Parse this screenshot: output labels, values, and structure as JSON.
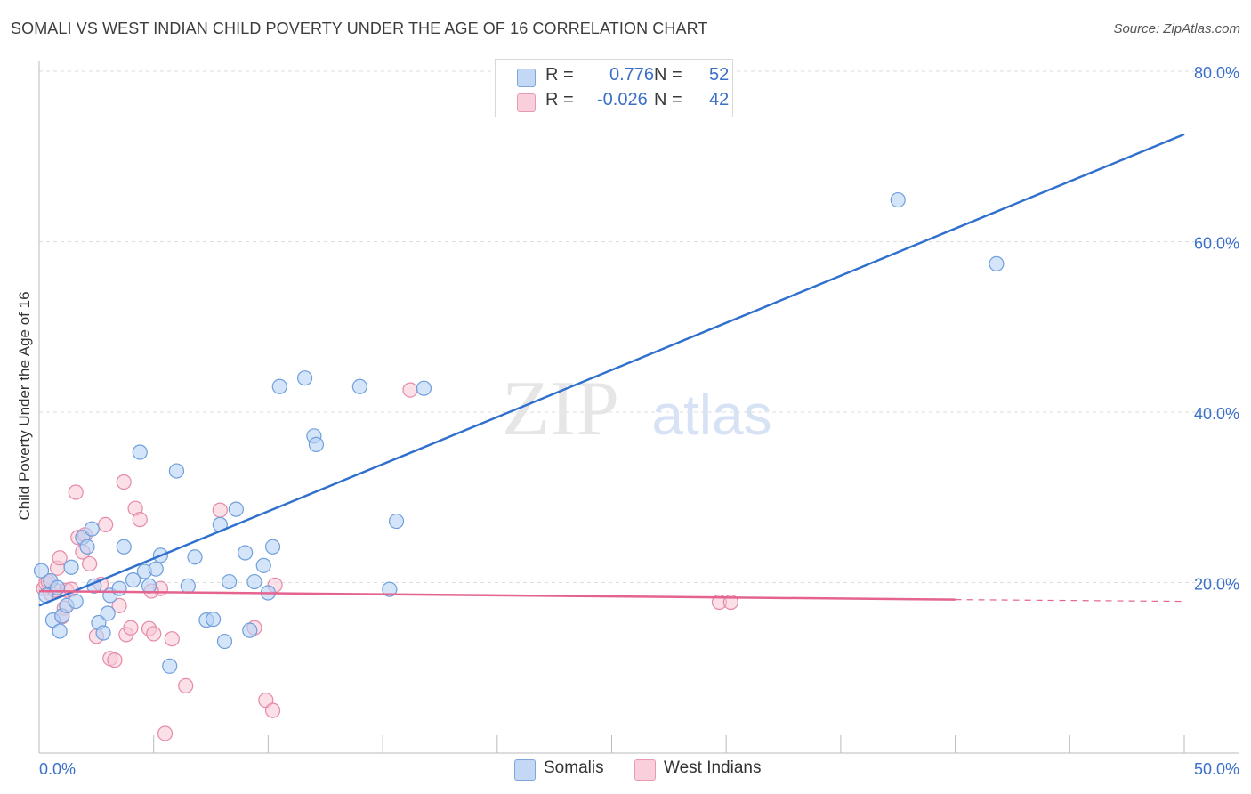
{
  "header": {
    "title": "SOMALI VS WEST INDIAN CHILD POVERTY UNDER THE AGE OF 16 CORRELATION CHART",
    "source": "Source: ZipAtlas.com"
  },
  "watermark": {
    "part1": "ZIP",
    "part2": "atlas"
  },
  "legend": {
    "somali": {
      "r_label": "R = ",
      "r_value": "0.776",
      "n_label": "N = ",
      "n_value": "52"
    },
    "westindian": {
      "r_label": "R = ",
      "r_value": "-0.026",
      "n_label": "N = ",
      "n_value": "42"
    }
  },
  "colors": {
    "somali_fill": "#b8d2f5",
    "somali_stroke": "#6f9fdc",
    "somali_line": "#2f6fce",
    "westindian_fill": "#f8c7d6",
    "westindian_stroke": "#e58aa7",
    "westindian_line": "#e4648f",
    "axis_label": "#3b6fc9",
    "grid": "#dddddd"
  },
  "chart_data": {
    "type": "scatter",
    "title": "SOMALI VS WEST INDIAN CHILD POVERTY UNDER THE AGE OF 16 CORRELATION CHART",
    "xlabel": "",
    "ylabel": "Child Poverty Under the Age of 16",
    "xlim": [
      0,
      50
    ],
    "ylim": [
      0,
      80
    ],
    "x_tick_labels": [
      "0.0%",
      "50.0%"
    ],
    "y_ticks": [
      20,
      40,
      60,
      80
    ],
    "y_tick_labels": [
      "20.0%",
      "40.0%",
      "60.0%",
      "80.0%"
    ],
    "legend_position": "bottom-center",
    "series": [
      {
        "name": "Somalis",
        "r": 0.776,
        "n": 52,
        "trend": {
          "x": [
            0,
            50
          ],
          "y": [
            17.3,
            72.6
          ]
        },
        "points": [
          [
            0.1,
            21.4
          ],
          [
            0.3,
            18.5
          ],
          [
            0.5,
            20.2
          ],
          [
            0.6,
            15.6
          ],
          [
            0.8,
            19.4
          ],
          [
            0.9,
            14.3
          ],
          [
            1.0,
            16.1
          ],
          [
            1.2,
            17.3
          ],
          [
            1.4,
            21.8
          ],
          [
            1.6,
            17.8
          ],
          [
            1.9,
            25.3
          ],
          [
            2.1,
            24.2
          ],
          [
            2.3,
            26.3
          ],
          [
            2.4,
            19.6
          ],
          [
            2.6,
            15.3
          ],
          [
            2.8,
            14.1
          ],
          [
            3.0,
            16.4
          ],
          [
            3.1,
            18.5
          ],
          [
            3.5,
            19.3
          ],
          [
            3.7,
            24.2
          ],
          [
            4.1,
            20.3
          ],
          [
            4.4,
            35.3
          ],
          [
            4.6,
            21.3
          ],
          [
            4.8,
            19.6
          ],
          [
            5.1,
            21.6
          ],
          [
            5.3,
            23.2
          ],
          [
            5.7,
            10.2
          ],
          [
            6.0,
            33.1
          ],
          [
            6.5,
            19.6
          ],
          [
            6.8,
            23.0
          ],
          [
            7.3,
            15.6
          ],
          [
            7.6,
            15.7
          ],
          [
            7.9,
            26.8
          ],
          [
            8.1,
            13.1
          ],
          [
            8.3,
            20.1
          ],
          [
            8.6,
            28.6
          ],
          [
            9.0,
            23.5
          ],
          [
            9.2,
            14.4
          ],
          [
            9.4,
            20.1
          ],
          [
            9.8,
            22.0
          ],
          [
            10.0,
            18.8
          ],
          [
            10.2,
            24.2
          ],
          [
            11.6,
            44.0
          ],
          [
            12.0,
            37.2
          ],
          [
            12.1,
            36.2
          ],
          [
            14.0,
            43.0
          ],
          [
            15.3,
            19.2
          ],
          [
            15.6,
            27.2
          ],
          [
            16.8,
            42.8
          ],
          [
            37.5,
            64.9
          ],
          [
            41.8,
            57.4
          ],
          [
            10.5,
            43.0
          ]
        ]
      },
      {
        "name": "West Indians",
        "r": -0.026,
        "n": 42,
        "trend": {
          "x": [
            0,
            40
          ],
          "y": [
            19.0,
            18.0
          ]
        },
        "dashed_extension": {
          "x": [
            40,
            50
          ],
          "y": [
            18.0,
            17.8
          ]
        },
        "points": [
          [
            0.2,
            19.3
          ],
          [
            0.3,
            19.9
          ],
          [
            0.4,
            20.1
          ],
          [
            0.5,
            18.7
          ],
          [
            0.7,
            19.1
          ],
          [
            0.8,
            21.7
          ],
          [
            0.9,
            22.9
          ],
          [
            1.1,
            17.0
          ],
          [
            1.2,
            19.1
          ],
          [
            1.4,
            19.2
          ],
          [
            1.6,
            30.6
          ],
          [
            1.7,
            25.3
          ],
          [
            1.9,
            23.6
          ],
          [
            2.0,
            25.6
          ],
          [
            2.2,
            22.2
          ],
          [
            2.5,
            13.7
          ],
          [
            2.7,
            19.8
          ],
          [
            2.9,
            26.8
          ],
          [
            3.1,
            11.1
          ],
          [
            3.3,
            10.9
          ],
          [
            3.5,
            17.3
          ],
          [
            3.7,
            31.8
          ],
          [
            3.8,
            13.9
          ],
          [
            4.0,
            14.7
          ],
          [
            4.2,
            28.7
          ],
          [
            4.4,
            27.4
          ],
          [
            4.8,
            14.6
          ],
          [
            5.0,
            14.0
          ],
          [
            5.3,
            19.3
          ],
          [
            5.5,
            2.3
          ],
          [
            5.8,
            13.4
          ],
          [
            6.4,
            7.9
          ],
          [
            7.9,
            28.5
          ],
          [
            9.4,
            14.7
          ],
          [
            9.9,
            6.2
          ],
          [
            10.2,
            5.0
          ],
          [
            10.3,
            19.7
          ],
          [
            16.2,
            42.6
          ],
          [
            29.7,
            17.7
          ],
          [
            30.2,
            17.7
          ],
          [
            4.9,
            19.0
          ],
          [
            1.0,
            16.0
          ]
        ]
      }
    ]
  },
  "bottom_legend": {
    "somalis": "Somalis",
    "westindians": "West Indians"
  }
}
